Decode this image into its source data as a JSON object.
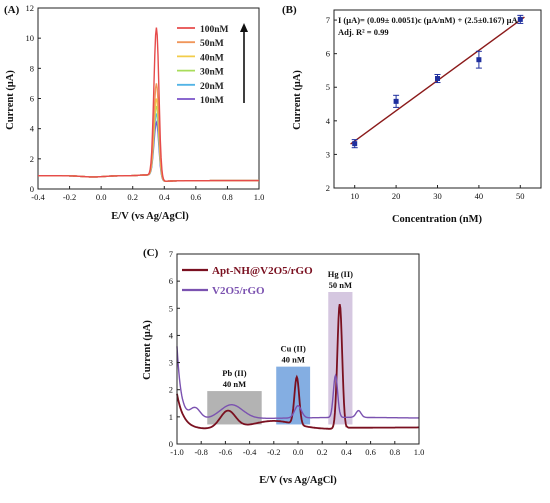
{
  "chart_data": [
    {
      "panel": "(A)",
      "type": "line",
      "xlabel": "E/V (vs Ag/AgCl)",
      "ylabel": "Current (μA)",
      "xlim": [
        -0.4,
        1.0
      ],
      "ylim": [
        0,
        12
      ],
      "xticks": [
        -0.4,
        -0.2,
        0.0,
        0.2,
        0.4,
        0.6,
        0.8,
        1.0
      ],
      "xtick_labels": [
        "-0.4",
        "-0.2",
        "0.0",
        "0.2",
        "0.4",
        "0.6",
        "0.8",
        "1.0"
      ],
      "yticks": [
        0,
        2,
        4,
        6,
        8,
        10,
        12
      ],
      "peak_potential": 0.35,
      "series": [
        {
          "name": "100nM",
          "color": "#e64b4b",
          "peak": 10.7
        },
        {
          "name": "50nM",
          "color": "#f0965a",
          "peak": 7.0
        },
        {
          "name": "40nM",
          "color": "#f2cc4a",
          "peak": 6.0
        },
        {
          "name": "30nM",
          "color": "#a8dc5a",
          "peak": 5.5
        },
        {
          "name": "20nM",
          "color": "#52b4e6",
          "peak": 5.0
        },
        {
          "name": "10nM",
          "color": "#7a52c8",
          "peak": 4.4
        }
      ],
      "legend": "top-right"
    },
    {
      "panel": "(B)",
      "type": "scatter",
      "xlabel": "Concentration (nM)",
      "ylabel": "Current (μA)",
      "xlim": [
        5,
        55
      ],
      "ylim": [
        2,
        7.3
      ],
      "xticks": [
        10,
        20,
        30,
        40,
        50
      ],
      "yticks": [
        2,
        3,
        4,
        5,
        6,
        7
      ],
      "points": [
        {
          "x": 10,
          "y": 3.32,
          "err": 0.12
        },
        {
          "x": 20,
          "y": 4.58,
          "err": 0.18
        },
        {
          "x": 30,
          "y": 5.26,
          "err": 0.12
        },
        {
          "x": 40,
          "y": 5.82,
          "err": 0.25
        },
        {
          "x": 50,
          "y": 7.02,
          "err": 0.12
        }
      ],
      "fit": {
        "slope": 0.09,
        "intercept": 2.5
      },
      "equation": "I (μA)= (0.09± 0.0051)c (μA/nM) + (2.5±0.167) μA",
      "r2_text": "Adj. R² = 0.99",
      "point_color": "#1f2f9e",
      "fit_color": "#8b1a1a"
    },
    {
      "panel": "(C)",
      "type": "line",
      "xlabel": "E/V (vs Ag/AgCl)",
      "ylabel": "Current (μA)",
      "xlim": [
        -1.0,
        1.0
      ],
      "ylim": [
        0,
        7
      ],
      "xticks": [
        -1.0,
        -0.8,
        -0.6,
        -0.4,
        -0.2,
        0.0,
        0.2,
        0.4,
        0.6,
        0.8,
        1.0
      ],
      "xtick_labels": [
        "-1.0",
        "-0.8",
        "-0.6",
        "-0.4",
        "-0.2",
        "0.0",
        "0.2",
        "0.4",
        "0.6",
        "0.8",
        "1.0"
      ],
      "yticks": [
        0,
        1,
        2,
        3,
        4,
        5,
        6,
        7
      ],
      "series": [
        {
          "name": "Apt-NH@V2O5/rGO",
          "color": "#7a1020"
        },
        {
          "name": "V2O5/rGO",
          "color": "#7b52b0"
        }
      ],
      "annotations": [
        {
          "name": "Pb (II)",
          "conc": "40 nM",
          "x_range": [
            -0.75,
            -0.3
          ],
          "top": 1.95,
          "color": "#9a9a9a"
        },
        {
          "name": "Cu (II)",
          "conc": "40 nM",
          "x_range": [
            -0.18,
            0.1
          ],
          "top": 2.85,
          "color": "#5b93d8"
        },
        {
          "name": "Hg (II)",
          "conc": "50 nM",
          "x_range": [
            0.25,
            0.45
          ],
          "top": 5.6,
          "color": "#c7b4d6"
        }
      ],
      "legend": "top-left"
    }
  ]
}
